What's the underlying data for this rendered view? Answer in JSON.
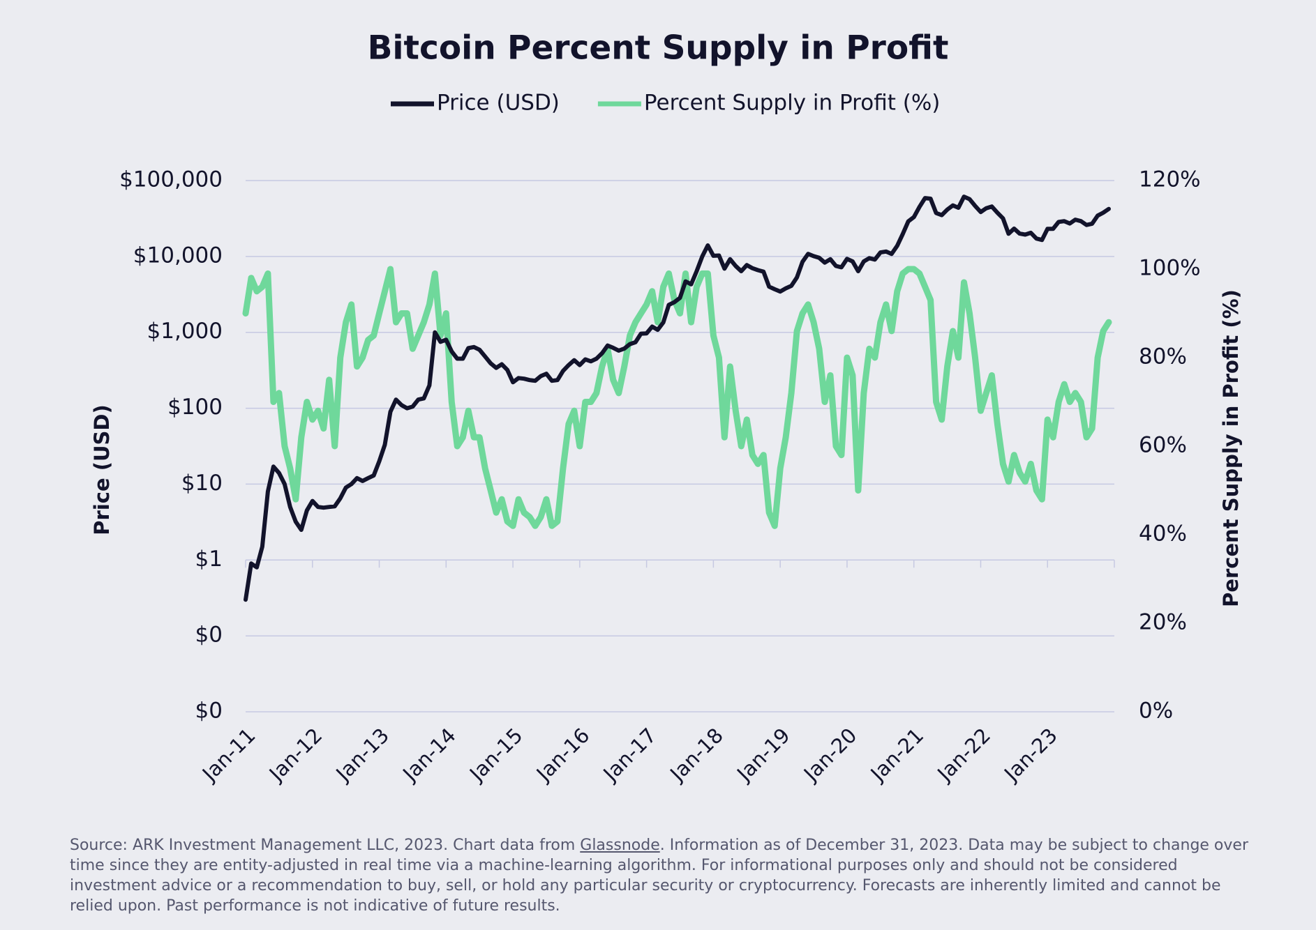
{
  "chart_data": {
    "type": "line",
    "title": "Bitcoin Percent Supply in Profit",
    "ylabel": "Price (USD)",
    "y2label": "Percent Supply in Profit (%)",
    "source": [
      "Source: ARK Investment Management LLC, 2023. Chart data from ",
      "Glassnode",
      ". Information as of December 31, 2023. Data may be subject to change over time since they are entity-adjusted in real time via a machine-learning algorithm. For informational purposes only and should not be considered investment advice or a recommendation to buy, sell, or hold any particular security or cryptocurrency. Forecasts are inherently limited and cannot be relied upon. Past performance is not indicative of future results."
    ],
    "ylog": true,
    "grid": true,
    "legend": "top",
    "ylim": [
      0.01,
      100000
    ],
    "yticks": [
      {
        "value": 0.01,
        "label": "$0"
      },
      {
        "value": 0.1,
        "label": "$0"
      },
      {
        "value": 1,
        "label": "$1"
      },
      {
        "value": 10,
        "label": "$10"
      },
      {
        "value": 100,
        "label": "$100"
      },
      {
        "value": 1000,
        "label": "$1,000"
      },
      {
        "value": 10000,
        "label": "$10,000"
      },
      {
        "value": 100000,
        "label": "$100,000"
      }
    ],
    "y2lim": [
      0,
      120
    ],
    "y2ticks": [
      {
        "value": 0,
        "label": "0%"
      },
      {
        "value": 20,
        "label": "20%"
      },
      {
        "value": 40,
        "label": "40%"
      },
      {
        "value": 60,
        "label": "60%"
      },
      {
        "value": 80,
        "label": "80%"
      },
      {
        "value": 100,
        "label": "100%"
      },
      {
        "value": 120,
        "label": "120%"
      }
    ],
    "xlim": [
      "2011-01",
      "2024-01"
    ],
    "xticks": [
      {
        "value": "2011-01",
        "label": "Jan-11"
      },
      {
        "value": "2012-01",
        "label": "Jan-12"
      },
      {
        "value": "2013-01",
        "label": "Jan-13"
      },
      {
        "value": "2014-01",
        "label": "Jan-14"
      },
      {
        "value": "2015-01",
        "label": "Jan-15"
      },
      {
        "value": "2016-01",
        "label": "Jan-16"
      },
      {
        "value": "2017-01",
        "label": "Jan-17"
      },
      {
        "value": "2018-01",
        "label": "Jan-18"
      },
      {
        "value": "2019-01",
        "label": "Jan-19"
      },
      {
        "value": "2020-01",
        "label": "Jan-20"
      },
      {
        "value": "2021-01",
        "label": "Jan-21"
      },
      {
        "value": "2022-01",
        "label": "Jan-22"
      },
      {
        "value": "2023-01",
        "label": "Jan-23"
      },
      {
        "value": "2024-01",
        "label": null
      }
    ],
    "x": [
      "2011-01",
      "2011-02",
      "2011-03",
      "2011-04",
      "2011-05",
      "2011-06",
      "2011-07",
      "2011-08",
      "2011-09",
      "2011-10",
      "2011-11",
      "2011-12",
      "2012-01",
      "2012-02",
      "2012-03",
      "2012-04",
      "2012-05",
      "2012-06",
      "2012-07",
      "2012-08",
      "2012-09",
      "2012-10",
      "2012-11",
      "2012-12",
      "2013-01",
      "2013-02",
      "2013-03",
      "2013-04",
      "2013-05",
      "2013-06",
      "2013-07",
      "2013-08",
      "2013-09",
      "2013-10",
      "2013-11",
      "2013-12",
      "2014-01",
      "2014-02",
      "2014-03",
      "2014-04",
      "2014-05",
      "2014-06",
      "2014-07",
      "2014-08",
      "2014-09",
      "2014-10",
      "2014-11",
      "2014-12",
      "2015-01",
      "2015-02",
      "2015-03",
      "2015-04",
      "2015-05",
      "2015-06",
      "2015-07",
      "2015-08",
      "2015-09",
      "2015-10",
      "2015-11",
      "2015-12",
      "2016-01",
      "2016-02",
      "2016-03",
      "2016-04",
      "2016-05",
      "2016-06",
      "2016-07",
      "2016-08",
      "2016-09",
      "2016-10",
      "2016-11",
      "2016-12",
      "2017-01",
      "2017-02",
      "2017-03",
      "2017-04",
      "2017-05",
      "2017-06",
      "2017-07",
      "2017-08",
      "2017-09",
      "2017-10",
      "2017-11",
      "2017-12",
      "2018-01",
      "2018-02",
      "2018-03",
      "2018-04",
      "2018-05",
      "2018-06",
      "2018-07",
      "2018-08",
      "2018-09",
      "2018-10",
      "2018-11",
      "2018-12",
      "2019-01",
      "2019-02",
      "2019-03",
      "2019-04",
      "2019-05",
      "2019-06",
      "2019-07",
      "2019-08",
      "2019-09",
      "2019-10",
      "2019-11",
      "2019-12",
      "2020-01",
      "2020-02",
      "2020-03",
      "2020-04",
      "2020-05",
      "2020-06",
      "2020-07",
      "2020-08",
      "2020-09",
      "2020-10",
      "2020-11",
      "2020-12",
      "2021-01",
      "2021-02",
      "2021-03",
      "2021-04",
      "2021-05",
      "2021-06",
      "2021-07",
      "2021-08",
      "2021-09",
      "2021-10",
      "2021-11",
      "2021-12",
      "2022-01",
      "2022-02",
      "2022-03",
      "2022-04",
      "2022-05",
      "2022-06",
      "2022-07",
      "2022-08",
      "2022-09",
      "2022-10",
      "2022-11",
      "2022-12",
      "2023-01",
      "2023-02",
      "2023-03",
      "2023-04",
      "2023-05",
      "2023-06",
      "2023-07",
      "2023-08",
      "2023-09",
      "2023-10",
      "2023-11",
      "2023-12"
    ],
    "series": [
      {
        "name": "Price (USD)",
        "color": "#12132b",
        "axis": "y",
        "values": [
          0.3,
          0.9,
          0.8,
          1.5,
          8,
          17,
          14,
          10,
          5,
          3.2,
          2.5,
          4.5,
          6,
          5,
          4.9,
          5,
          5.1,
          6.5,
          9,
          10,
          12,
          11,
          12,
          13,
          20,
          33,
          90,
          130,
          110,
          100,
          105,
          130,
          135,
          200,
          1000,
          750,
          800,
          560,
          450,
          450,
          620,
          640,
          590,
          480,
          390,
          340,
          380,
          320,
          220,
          250,
          245,
          235,
          230,
          265,
          285,
          230,
          235,
          310,
          370,
          430,
          370,
          440,
          415,
          450,
          530,
          670,
          625,
          575,
          610,
          700,
          740,
          960,
          970,
          1190,
          1080,
          1350,
          2300,
          2500,
          2850,
          4700,
          4300,
          6400,
          10000,
          14000,
          10200,
          10300,
          6900,
          9200,
          7500,
          6400,
          7700,
          7000,
          6600,
          6300,
          4000,
          3700,
          3450,
          3800,
          4100,
          5300,
          8500,
          10800,
          10100,
          9600,
          8300,
          9200,
          7500,
          7200,
          9300,
          8600,
          6400,
          8600,
          9500,
          9100,
          11300,
          11600,
          10800,
          13800,
          19700,
          29000,
          33000,
          45000,
          58800,
          57700,
          37300,
          35000,
          41500,
          47100,
          43800,
          61300,
          57000,
          46300,
          38500,
          43200,
          45500,
          37700,
          31800,
          19900,
          23300,
          20000,
          19400,
          20500,
          17200,
          16500,
          23100,
          23100,
          28500,
          29200,
          27200,
          30500,
          29200,
          26000,
          27000,
          34500,
          37700,
          42300
        ]
      },
      {
        "name": "Percent Supply in Profit (%)",
        "color": "#6fd89b",
        "axis": "y2",
        "values": [
          90,
          98,
          95,
          96,
          99,
          70,
          72,
          60,
          55,
          48,
          62,
          70,
          66,
          68,
          64,
          75,
          60,
          80,
          88,
          92,
          78,
          80,
          84,
          85,
          90,
          95,
          100,
          88,
          90,
          90,
          82,
          85,
          88,
          92,
          99,
          85,
          90,
          70,
          60,
          62,
          68,
          62,
          62,
          55,
          50,
          45,
          48,
          43,
          42,
          48,
          45,
          44,
          42,
          44,
          48,
          42,
          43,
          55,
          65,
          68,
          60,
          70,
          70,
          72,
          78,
          82,
          75,
          72,
          78,
          85,
          88,
          90,
          92,
          95,
          88,
          96,
          99,
          93,
          90,
          99,
          88,
          96,
          99,
          99,
          85,
          80,
          62,
          78,
          68,
          60,
          66,
          58,
          56,
          58,
          45,
          42,
          55,
          62,
          72,
          86,
          90,
          92,
          88,
          82,
          70,
          76,
          60,
          58,
          80,
          76,
          50,
          72,
          82,
          80,
          88,
          92,
          86,
          95,
          99,
          100,
          100,
          99,
          96,
          93,
          70,
          66,
          78,
          86,
          80,
          97,
          90,
          80,
          68,
          72,
          76,
          65,
          56,
          52,
          58,
          54,
          52,
          56,
          50,
          48,
          66,
          62,
          70,
          74,
          70,
          72,
          70,
          62,
          64,
          80,
          86,
          88
        ]
      }
    ]
  }
}
